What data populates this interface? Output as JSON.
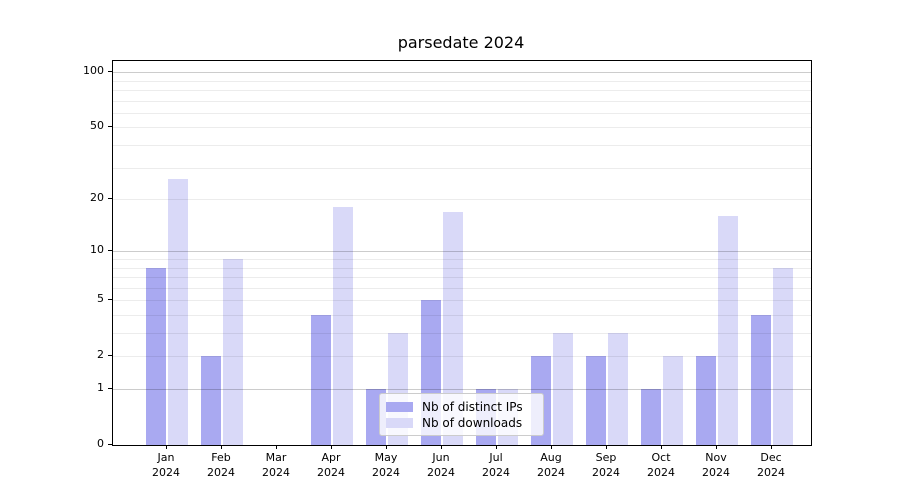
{
  "chart_data": {
    "type": "bar",
    "title": "parsedate 2024",
    "months": [
      "Jan",
      "Feb",
      "Mar",
      "Apr",
      "May",
      "Jun",
      "Jul",
      "Aug",
      "Sep",
      "Oct",
      "Nov",
      "Dec"
    ],
    "year": "2024",
    "series": [
      {
        "name": "Nb of distinct IPs",
        "color": "#a9a9f1",
        "values": [
          8,
          2,
          0,
          4,
          1,
          5,
          1,
          2,
          2,
          1,
          2,
          4
        ]
      },
      {
        "name": "Nb of downloads",
        "color": "#d9d9f8",
        "values": [
          26,
          9,
          0,
          18,
          3,
          17,
          1,
          3,
          3,
          2,
          16,
          8
        ]
      }
    ],
    "y_scale": "log1p",
    "y_ticks": [
      0,
      1,
      2,
      5,
      10,
      20,
      50,
      100
    ],
    "y_minor_gridlines": [
      2,
      3,
      4,
      5,
      6,
      7,
      8,
      9,
      20,
      30,
      40,
      50,
      60,
      70,
      80,
      90
    ],
    "y_major_gridlines": [
      1,
      10,
      100
    ],
    "ylim": [
      0,
      115
    ],
    "xlabel": "",
    "ylabel": "",
    "grid": "horizontal (minor + major), drawn over bars",
    "legend_position": "lower center"
  }
}
